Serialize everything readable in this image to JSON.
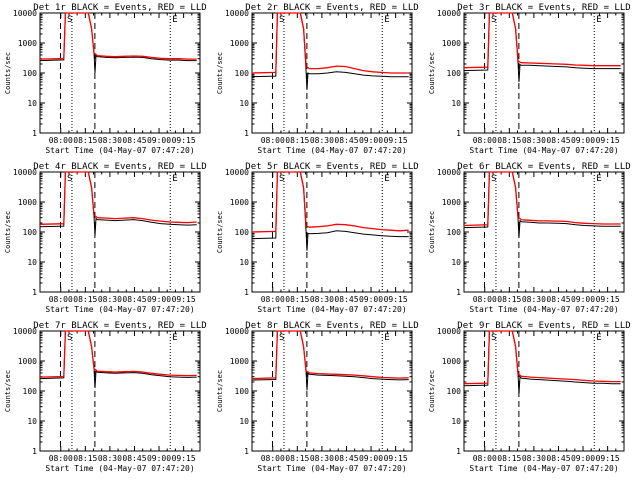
{
  "colors": {
    "events": "#000000",
    "lld": "#ff0000",
    "axes": "#000000",
    "background": "#ffffff"
  },
  "chart_data": [
    {
      "type": "line",
      "title": "Det 1r BLACK = Events, RED = LLD",
      "xlabel": "Start Time (04-May-07 07:47:20)",
      "ylabel": "Counts/sec",
      "x_ticks": [
        "08:00",
        "08:15",
        "08:30",
        "08:45",
        "09:00",
        "09:15"
      ],
      "y_ticks": [
        "1",
        "10",
        "100",
        "1000",
        "10000"
      ],
      "ylim": [
        1,
        10000
      ],
      "yscale": "log",
      "markers": [
        "S",
        "E"
      ],
      "base_events": 260,
      "base_lld": 290,
      "series": [
        {
          "id": "events",
          "values": [
            260,
            270,
            280,
            280,
            400,
            380,
            350,
            330,
            320,
            330,
            340,
            330,
            300,
            280,
            270,
            270,
            260,
            260
          ]
        },
        {
          "id": "lld",
          "values": [
            290,
            300,
            310,
            310,
            440,
            420,
            380,
            360,
            350,
            360,
            370,
            360,
            330,
            310,
            300,
            300,
            290,
            290
          ]
        }
      ]
    },
    {
      "type": "line",
      "title": "Det 2r BLACK = Events, RED = LLD",
      "xlabel": "Start Time (04-May-07 07:47:20)",
      "ylabel": "Counts/sec",
      "x_ticks": [
        "08:00",
        "08:15",
        "08:30",
        "08:45",
        "09:00",
        "09:15"
      ],
      "y_ticks": [
        "1",
        "10",
        "100",
        "1000",
        "10000"
      ],
      "ylim": [
        1,
        10000
      ],
      "yscale": "log",
      "markers": [
        "S",
        "E"
      ],
      "base_events": 75,
      "base_lld": 100,
      "series": [
        {
          "id": "events",
          "values": [
            75,
            78,
            80,
            80,
            110,
            100,
            95,
            95,
            100,
            110,
            105,
            95,
            85,
            80,
            78,
            75,
            75,
            75
          ]
        },
        {
          "id": "lld",
          "values": [
            100,
            105,
            105,
            105,
            170,
            150,
            140,
            140,
            150,
            170,
            165,
            140,
            120,
            110,
            105,
            100,
            100,
            100
          ]
        }
      ]
    },
    {
      "type": "line",
      "title": "Det 3r BLACK = Events, RED = LLD",
      "xlabel": "Start Time (04-May-07 07:47:20)",
      "ylabel": "Counts/sec",
      "x_ticks": [
        "08:00",
        "08:15",
        "08:30",
        "08:45",
        "09:00",
        "09:15"
      ],
      "y_ticks": [
        "1",
        "10",
        "100",
        "1000",
        "10000"
      ],
      "ylim": [
        1,
        10000
      ],
      "yscale": "log",
      "markers": [
        "S",
        "E"
      ],
      "base_events": 120,
      "base_lld": 150,
      "series": [
        {
          "id": "events",
          "values": [
            120,
            125,
            130,
            130,
            200,
            190,
            180,
            180,
            175,
            170,
            165,
            160,
            150,
            145,
            140,
            140,
            140,
            140
          ]
        },
        {
          "id": "lld",
          "values": [
            150,
            155,
            160,
            160,
            250,
            230,
            220,
            215,
            210,
            205,
            200,
            195,
            185,
            180,
            175,
            175,
            175,
            175
          ]
        }
      ]
    },
    {
      "type": "line",
      "title": "Det 4r BLACK = Events, RED = LLD",
      "xlabel": "Start Time (04-May-07 07:47:20)",
      "ylabel": "Counts/sec",
      "x_ticks": [
        "08:00",
        "08:15",
        "08:30",
        "08:45",
        "09:00",
        "09:15"
      ],
      "y_ticks": [
        "1",
        "10",
        "100",
        "1000",
        "10000"
      ],
      "ylim": [
        1,
        10000
      ],
      "yscale": "log",
      "markers": [
        "S",
        "E"
      ],
      "base_events": 150,
      "base_lld": 180,
      "series": [
        {
          "id": "events",
          "values": [
            150,
            155,
            160,
            160,
            300,
            280,
            260,
            250,
            240,
            250,
            260,
            240,
            210,
            190,
            180,
            175,
            170,
            175
          ]
        },
        {
          "id": "lld",
          "values": [
            180,
            185,
            190,
            190,
            350,
            330,
            300,
            290,
            280,
            290,
            300,
            280,
            250,
            230,
            215,
            210,
            205,
            215
          ]
        }
      ]
    },
    {
      "type": "line",
      "title": "Det 5r BLACK = Events, RED = LLD",
      "xlabel": "Start Time (04-May-07 07:47:20)",
      "ylabel": "Counts/sec",
      "x_ticks": [
        "08:00",
        "08:15",
        "08:30",
        "08:45",
        "09:00",
        "09:15"
      ],
      "y_ticks": [
        "1",
        "10",
        "100",
        "1000",
        "10000"
      ],
      "ylim": [
        1,
        10000
      ],
      "yscale": "log",
      "markers": [
        "S",
        "E"
      ],
      "base_events": 60,
      "base_lld": 100,
      "series": [
        {
          "id": "events",
          "values": [
            60,
            62,
            65,
            65,
            95,
            90,
            88,
            90,
            95,
            110,
            105,
            95,
            85,
            80,
            75,
            72,
            70,
            70
          ]
        },
        {
          "id": "lld",
          "values": [
            100,
            105,
            110,
            110,
            160,
            150,
            145,
            150,
            160,
            180,
            175,
            160,
            140,
            130,
            120,
            115,
            110,
            115
          ]
        }
      ]
    },
    {
      "type": "line",
      "title": "Det 6r BLACK = Events, RED = LLD",
      "xlabel": "Start Time (04-May-07 07:47:20)",
      "ylabel": "Counts/sec",
      "x_ticks": [
        "08:00",
        "08:15",
        "08:30",
        "08:45",
        "09:00",
        "09:15"
      ],
      "y_ticks": [
        "1",
        "10",
        "100",
        "1000",
        "10000"
      ],
      "ylim": [
        1,
        10000
      ],
      "yscale": "log",
      "markers": [
        "S",
        "E"
      ],
      "base_events": 140,
      "base_lld": 165,
      "series": [
        {
          "id": "events",
          "values": [
            140,
            145,
            150,
            150,
            260,
            240,
            220,
            210,
            200,
            200,
            195,
            190,
            175,
            165,
            160,
            155,
            155,
            155
          ]
        },
        {
          "id": "lld",
          "values": [
            165,
            170,
            175,
            175,
            300,
            280,
            255,
            245,
            235,
            235,
            230,
            225,
            205,
            195,
            190,
            185,
            185,
            185
          ]
        }
      ]
    },
    {
      "type": "line",
      "title": "Det 7r BLACK = Events, RED = LLD",
      "xlabel": "Start Time (04-May-07 07:47:20)",
      "ylabel": "Counts/sec",
      "x_ticks": [
        "08:00",
        "08:15",
        "08:30",
        "08:45",
        "09:00",
        "09:15"
      ],
      "y_ticks": [
        "1",
        "10",
        "100",
        "1000",
        "10000"
      ],
      "ylim": [
        1,
        10000
      ],
      "yscale": "log",
      "markers": [
        "S",
        "E"
      ],
      "base_events": 260,
      "base_lld": 290,
      "series": [
        {
          "id": "events",
          "values": [
            260,
            265,
            270,
            270,
            500,
            460,
            420,
            400,
            390,
            400,
            410,
            390,
            350,
            320,
            300,
            290,
            285,
            290
          ]
        },
        {
          "id": "lld",
          "values": [
            290,
            295,
            300,
            300,
            540,
            500,
            460,
            440,
            430,
            440,
            450,
            430,
            390,
            360,
            340,
            330,
            325,
            330
          ]
        }
      ]
    },
    {
      "type": "line",
      "title": "Det 8r BLACK = Events, RED = LLD",
      "xlabel": "Start Time (04-May-07 07:47:20)",
      "ylabel": "Counts/sec",
      "x_ticks": [
        "08:00",
        "08:15",
        "08:30",
        "08:45",
        "09:00",
        "09:15"
      ],
      "y_ticks": [
        "1",
        "10",
        "100",
        "1000",
        "10000"
      ],
      "ylim": [
        1,
        10000
      ],
      "yscale": "log",
      "markers": [
        "S",
        "E"
      ],
      "base_events": 230,
      "base_lld": 260,
      "series": [
        {
          "id": "events",
          "values": [
            230,
            235,
            240,
            240,
            420,
            390,
            360,
            340,
            330,
            320,
            310,
            300,
            280,
            260,
            250,
            240,
            235,
            240
          ]
        },
        {
          "id": "lld",
          "values": [
            260,
            265,
            270,
            270,
            460,
            430,
            400,
            380,
            370,
            360,
            350,
            340,
            320,
            300,
            285,
            275,
            270,
            275
          ]
        }
      ]
    },
    {
      "type": "line",
      "title": "Det 9r BLACK = Events, RED = LLD",
      "xlabel": "Start Time (04-May-07 07:47:20)",
      "ylabel": "Counts/sec",
      "x_ticks": [
        "08:00",
        "08:15",
        "08:30",
        "08:45",
        "09:00",
        "09:15"
      ],
      "y_ticks": [
        "1",
        "10",
        "100",
        "1000",
        "10000"
      ],
      "ylim": [
        1,
        10000
      ],
      "yscale": "log",
      "markers": [
        "S",
        "E"
      ],
      "base_events": 150,
      "base_lld": 175,
      "series": [
        {
          "id": "events",
          "values": [
            150,
            155,
            160,
            160,
            320,
            300,
            270,
            250,
            240,
            230,
            220,
            210,
            200,
            190,
            180,
            180,
            175,
            175
          ]
        },
        {
          "id": "lld",
          "values": [
            175,
            180,
            185,
            185,
            360,
            340,
            310,
            290,
            280,
            270,
            260,
            250,
            240,
            225,
            215,
            210,
            205,
            205
          ]
        }
      ]
    }
  ]
}
